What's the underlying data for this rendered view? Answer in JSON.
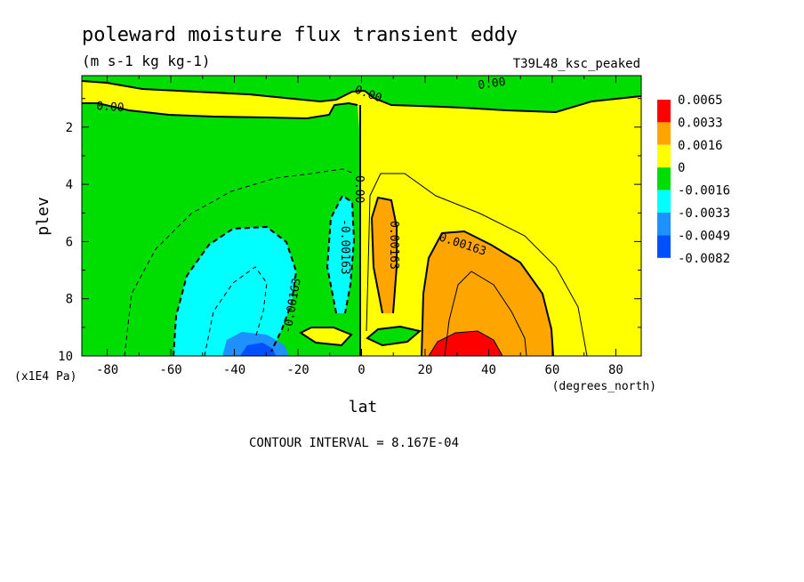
{
  "chart_data": {
    "type": "contour",
    "title": "poleward moisture flux transient eddy",
    "units": "(m s-1 kg kg-1)",
    "experiment": "T39L48_ksc_peaked",
    "xlabel": "lat",
    "xunits": "(degrees_north)",
    "ylabel": "plev",
    "yunits": "(x1E4 Pa)",
    "xlim": [
      -88,
      88
    ],
    "ylim": [
      10,
      0.2
    ],
    "xticks": [
      -80,
      -60,
      -40,
      -20,
      0,
      20,
      40,
      60,
      80
    ],
    "yticks": [
      2,
      4,
      6,
      8,
      10
    ],
    "footer": "CONTOUR INTERVAL = 8.167E-04",
    "contour_labels": [
      "0.00",
      "0.00",
      "0.00",
      "0.00",
      "-0.00163",
      "-0.00163",
      "0.00163",
      "0.00163"
    ],
    "legend": {
      "levels": [
        "0.0065",
        "0.0033",
        "0.0016",
        "0",
        "-0.0016",
        "-0.0033",
        "-0.0049",
        "-0.0082"
      ],
      "colors": [
        "#ff0000",
        "#ffa500",
        "#ffff00",
        "#00dd00",
        "#00ffff",
        "#1e90ff",
        "#0050ff"
      ]
    },
    "colors": {
      "red": "#ff0000",
      "orange": "#ffa500",
      "yellow": "#ffff00",
      "green": "#00dd00",
      "cyan": "#00ffff",
      "blue": "#1e90ff",
      "darkblue": "#0050ff"
    }
  }
}
